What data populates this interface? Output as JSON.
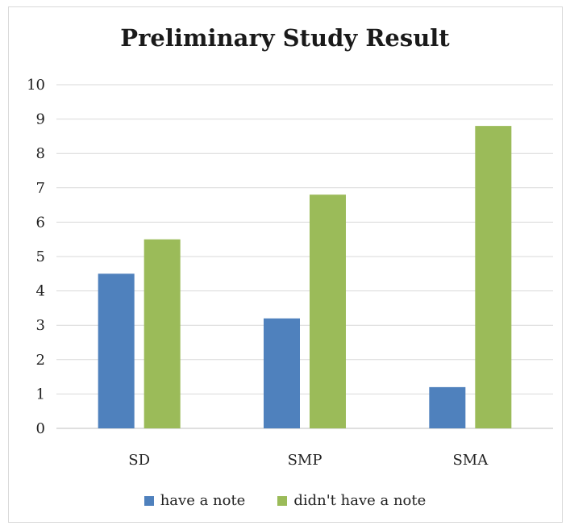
{
  "chart_data": {
    "type": "bar",
    "title": "Preliminary Study Result",
    "categories": [
      "SD",
      "SMP",
      "SMA"
    ],
    "series": [
      {
        "name": "have a note",
        "values": [
          4.5,
          3.2,
          1.2
        ],
        "color": "#4f81bd"
      },
      {
        "name": "didn't have a note",
        "values": [
          5.5,
          6.8,
          8.8
        ],
        "color": "#9bbb59"
      }
    ],
    "ylim": [
      0,
      10
    ],
    "yticks": [
      "0",
      "1",
      "2",
      "3",
      "4",
      "5",
      "6",
      "7",
      "8",
      "9",
      "10"
    ],
    "grid": true,
    "legend_position": "bottom"
  }
}
